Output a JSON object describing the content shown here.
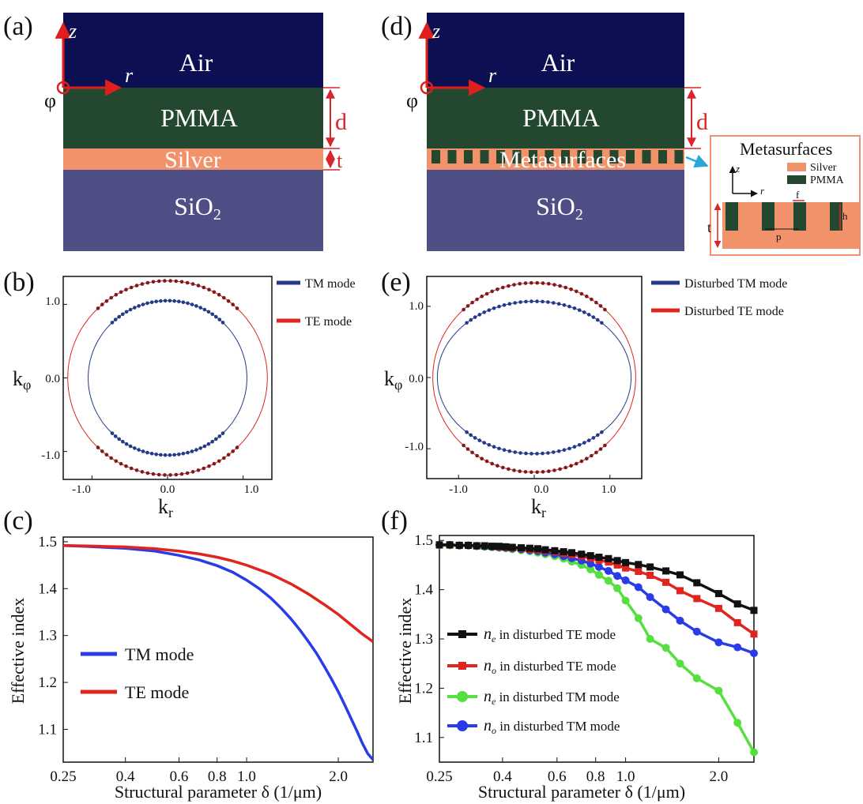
{
  "panel_labels": [
    "(a)",
    "(b)",
    "(c)",
    "(d)",
    "(e)",
    "(f)"
  ],
  "colors": {
    "air": "#0c0f52",
    "pmma": "#23482f",
    "silver": "#f2926a",
    "sio2": "#4f4f86",
    "dim_red": "#d9262a",
    "axis_red": "#e01e1e",
    "tm_blue": "#243a88",
    "te_red": "#e0241f",
    "bright_blue": "#2a3ce8",
    "black": "#111111",
    "green": "#55e040",
    "callout": "#29a8d8"
  },
  "schematic_a": {
    "layers": [
      "Air",
      "PMMA",
      "Silver",
      "SiO",
      "2"
    ],
    "axes": {
      "z": "z",
      "r": "r",
      "phi": "φ"
    },
    "dims": {
      "d": "d",
      "t": "t"
    }
  },
  "schematic_d": {
    "layers": [
      "Air",
      "PMMA",
      "Metasurfaces",
      "SiO",
      "2"
    ],
    "axes": {
      "z": "z",
      "r": "r",
      "phi": "φ"
    },
    "dims": {
      "d": "d"
    },
    "inset": {
      "title": "Metasurfaces",
      "legend": [
        "Silver",
        "PMMA"
      ],
      "axes": {
        "z": "z",
        "r": "r"
      },
      "dims": {
        "t": "t",
        "f": "f",
        "h": "h",
        "p": "p"
      }
    }
  },
  "chart_data": [
    {
      "panel": "b",
      "type": "scatter",
      "xlabel_main": "k",
      "xlabel_sub": "r",
      "ylabel_main": "k",
      "ylabel_sub": "φ",
      "xticks": [
        "-1.0",
        "0.0",
        "1.0"
      ],
      "yticks": [
        "1.0",
        "0.0",
        "-1.0"
      ],
      "xlim": [
        -1.38,
        1.38
      ],
      "ylim": [
        -1.38,
        1.38
      ],
      "series": [
        {
          "name": "TM mode",
          "shape": "ellipse",
          "rx": 1.05,
          "ry": 1.05
        },
        {
          "name": "TE mode",
          "shape": "ellipse",
          "rx": 1.32,
          "ry": 1.32
        }
      ]
    },
    {
      "panel": "e",
      "type": "scatter",
      "xlabel_main": "k",
      "xlabel_sub": "r",
      "ylabel_main": "k",
      "ylabel_sub": "φ",
      "xticks": [
        "-1.0",
        "0.0",
        "1.0"
      ],
      "yticks": [
        "1.0",
        "0.0",
        "-1.0"
      ],
      "xlim": [
        -1.42,
        1.42
      ],
      "ylim": [
        -1.42,
        1.42
      ],
      "series": [
        {
          "name": "Disturbed TM mode",
          "shape": "ellipse",
          "rx": 1.28,
          "ry": 1.07
        },
        {
          "name": "Disturbed TE mode",
          "shape": "ellipse",
          "rx": 1.34,
          "ry": 1.33
        }
      ]
    },
    {
      "panel": "c",
      "type": "line",
      "xscale": "log",
      "xlabel": "Structural parameter δ (1/μm)",
      "ylabel": "Effective index",
      "xlim": [
        0.25,
        2.6
      ],
      "ylim": [
        1.03,
        1.51
      ],
      "xticks": [
        0.25,
        0.4,
        0.6,
        0.8,
        1.0,
        2.0
      ],
      "xtick_labels": [
        "0.25",
        "0.4",
        "0.6",
        "0.8",
        "1.0",
        "2.0"
      ],
      "yticks": [
        1.1,
        1.2,
        1.3,
        1.4,
        1.5
      ],
      "ytick_labels": [
        "1.1",
        "1.2",
        "1.3",
        "1.4",
        "1.5"
      ],
      "legend": [
        "TM mode",
        "TE mode"
      ],
      "series": [
        {
          "name": "TM mode",
          "x": [
            0.25,
            0.3,
            0.4,
            0.5,
            0.6,
            0.7,
            0.8,
            0.9,
            1.0,
            1.1,
            1.2,
            1.3,
            1.4,
            1.5,
            1.6,
            1.7,
            1.8,
            1.9,
            2.0,
            2.1,
            2.2,
            2.3,
            2.4,
            2.5,
            2.6
          ],
          "values": [
            1.492,
            1.49,
            1.486,
            1.48,
            1.471,
            1.461,
            1.449,
            1.435,
            1.418,
            1.4,
            1.38,
            1.358,
            1.335,
            1.311,
            1.286,
            1.261,
            1.234,
            1.207,
            1.18,
            1.152,
            1.124,
            1.097,
            1.07,
            1.048,
            1.035
          ]
        },
        {
          "name": "TE mode",
          "x": [
            0.25,
            0.3,
            0.4,
            0.5,
            0.6,
            0.7,
            0.8,
            0.9,
            1.0,
            1.2,
            1.4,
            1.6,
            1.8,
            2.0,
            2.2,
            2.4,
            2.6
          ],
          "values": [
            1.492,
            1.491,
            1.489,
            1.485,
            1.48,
            1.474,
            1.467,
            1.459,
            1.45,
            1.431,
            1.41,
            1.388,
            1.366,
            1.345,
            1.323,
            1.303,
            1.287
          ]
        }
      ]
    },
    {
      "panel": "f",
      "type": "line",
      "xscale": "log",
      "xlabel": "Structural parameter δ (1/μm)",
      "ylabel": "Effective index",
      "xlim": [
        0.25,
        2.6
      ],
      "ylim": [
        1.05,
        1.51
      ],
      "xticks": [
        0.25,
        0.4,
        0.6,
        0.8,
        1.0,
        2.0
      ],
      "xtick_labels": [
        "0.25",
        "0.4",
        "0.6",
        "0.8",
        "1.0",
        "2.0"
      ],
      "yticks": [
        1.1,
        1.2,
        1.3,
        1.4,
        1.5
      ],
      "ytick_labels": [
        "1.1",
        "1.2",
        "1.3",
        "1.4",
        "1.5"
      ],
      "legend": [
        {
          "sym": "n",
          "sub": "e",
          "text": " in disturbed TE mode"
        },
        {
          "sym": "n",
          "sub": "o",
          "text": " in disturbed TE mode"
        },
        {
          "sym": "n",
          "sub": "e",
          "text": " in disturbed TM mode"
        },
        {
          "sym": "n",
          "sub": "o",
          "text": " in disturbed TM mode"
        }
      ],
      "x": [
        0.25,
        0.27,
        0.29,
        0.31,
        0.33,
        0.35,
        0.37,
        0.39,
        0.41,
        0.43,
        0.46,
        0.49,
        0.52,
        0.55,
        0.59,
        0.63,
        0.67,
        0.72,
        0.77,
        0.82,
        0.88,
        0.94,
        1.0,
        1.1,
        1.2,
        1.35,
        1.5,
        1.7,
        2.0,
        2.3,
        2.6
      ],
      "series": [
        {
          "name": "ne in disturbed TE mode",
          "marker": "square",
          "values": [
            1.491,
            1.491,
            1.49,
            1.49,
            1.489,
            1.489,
            1.488,
            1.488,
            1.487,
            1.486,
            1.485,
            1.484,
            1.483,
            1.481,
            1.479,
            1.477,
            1.475,
            1.472,
            1.469,
            1.466,
            1.463,
            1.459,
            1.455,
            1.451,
            1.446,
            1.438,
            1.43,
            1.414,
            1.392,
            1.371,
            1.358
          ]
        },
        {
          "name": "no in disturbed TE mode",
          "marker": "square",
          "values": [
            1.491,
            1.491,
            1.49,
            1.49,
            1.489,
            1.489,
            1.488,
            1.487,
            1.486,
            1.485,
            1.484,
            1.482,
            1.481,
            1.479,
            1.477,
            1.474,
            1.471,
            1.468,
            1.464,
            1.46,
            1.456,
            1.45,
            1.444,
            1.437,
            1.429,
            1.415,
            1.398,
            1.382,
            1.362,
            1.333,
            1.31
          ]
        },
        {
          "name": "ne in disturbed TM mode",
          "marker": "circle",
          "values": [
            1.49,
            1.49,
            1.489,
            1.489,
            1.488,
            1.487,
            1.486,
            1.485,
            1.484,
            1.482,
            1.48,
            1.478,
            1.475,
            1.472,
            1.468,
            1.463,
            1.457,
            1.45,
            1.441,
            1.43,
            1.418,
            1.403,
            1.378,
            1.342,
            1.3,
            1.282,
            1.25,
            1.22,
            1.195,
            1.13,
            1.07
          ]
        },
        {
          "name": "no in disturbed TM mode",
          "marker": "circle",
          "values": [
            1.491,
            1.491,
            1.49,
            1.49,
            1.489,
            1.488,
            1.487,
            1.486,
            1.485,
            1.484,
            1.482,
            1.48,
            1.478,
            1.475,
            1.472,
            1.468,
            1.464,
            1.459,
            1.453,
            1.446,
            1.438,
            1.428,
            1.419,
            1.405,
            1.385,
            1.36,
            1.337,
            1.315,
            1.293,
            1.283,
            1.271
          ]
        }
      ]
    }
  ]
}
